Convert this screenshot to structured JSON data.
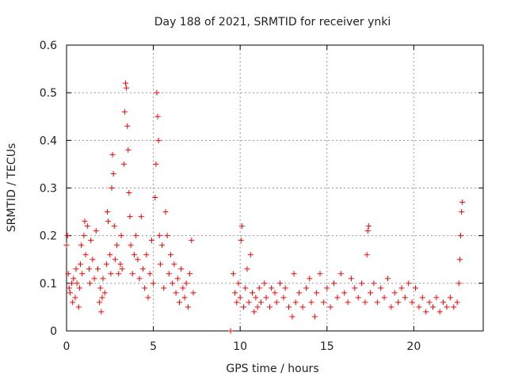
{
  "chart_data": {
    "type": "scatter",
    "title": "Day 188 of 2021, SRMTID for receiver ynki",
    "xlabel": "GPS time / hours",
    "ylabel": "SRMTID / TECUs",
    "xlim": [
      0,
      24
    ],
    "ylim": [
      0,
      0.6
    ],
    "xticks": [
      0,
      5,
      10,
      15,
      20
    ],
    "yticks": [
      0,
      0.1,
      0.2,
      0.3,
      0.4,
      0.5,
      0.6
    ],
    "xtick_labels": [
      "0",
      "5",
      "10",
      "15",
      "20"
    ],
    "ytick_labels": [
      "0",
      "0.1",
      "0.2",
      "0.3",
      "0.4",
      "0.5",
      "0.6"
    ],
    "grid": true,
    "marker": "plus",
    "color": "#ff0000",
    "series": [
      {
        "name": "SRMTID",
        "points": [
          [
            0.0,
            0.18
          ],
          [
            0.05,
            0.2
          ],
          [
            0.1,
            0.12
          ],
          [
            0.15,
            0.09
          ],
          [
            0.2,
            0.08
          ],
          [
            0.3,
            0.1
          ],
          [
            0.35,
            0.06
          ],
          [
            0.4,
            0.11
          ],
          [
            0.5,
            0.07
          ],
          [
            0.55,
            0.13
          ],
          [
            0.6,
            0.1
          ],
          [
            0.7,
            0.05
          ],
          [
            0.75,
            0.09
          ],
          [
            0.8,
            0.14
          ],
          [
            0.85,
            0.18
          ],
          [
            0.9,
            0.12
          ],
          [
            1.0,
            0.2
          ],
          [
            1.05,
            0.23
          ],
          [
            1.1,
            0.16
          ],
          [
            1.2,
            0.22
          ],
          [
            1.3,
            0.13
          ],
          [
            1.35,
            0.1
          ],
          [
            1.4,
            0.19
          ],
          [
            1.5,
            0.15
          ],
          [
            1.6,
            0.11
          ],
          [
            1.7,
            0.21
          ],
          [
            1.8,
            0.13
          ],
          [
            1.9,
            0.06
          ],
          [
            1.95,
            0.09
          ],
          [
            2.0,
            0.04
          ],
          [
            2.05,
            0.07
          ],
          [
            2.1,
            0.11
          ],
          [
            2.2,
            0.08
          ],
          [
            2.3,
            0.14
          ],
          [
            2.35,
            0.25
          ],
          [
            2.4,
            0.23
          ],
          [
            2.5,
            0.16
          ],
          [
            2.55,
            0.12
          ],
          [
            2.6,
            0.3
          ],
          [
            2.65,
            0.37
          ],
          [
            2.7,
            0.33
          ],
          [
            2.75,
            0.22
          ],
          [
            2.8,
            0.15
          ],
          [
            2.9,
            0.18
          ],
          [
            3.0,
            0.12
          ],
          [
            3.1,
            0.14
          ],
          [
            3.15,
            0.2
          ],
          [
            3.2,
            0.13
          ],
          [
            3.3,
            0.35
          ],
          [
            3.35,
            0.46
          ],
          [
            3.4,
            0.52
          ],
          [
            3.45,
            0.51
          ],
          [
            3.5,
            0.43
          ],
          [
            3.55,
            0.38
          ],
          [
            3.6,
            0.29
          ],
          [
            3.65,
            0.24
          ],
          [
            3.7,
            0.18
          ],
          [
            3.8,
            0.12
          ],
          [
            3.9,
            0.16
          ],
          [
            4.0,
            0.2
          ],
          [
            4.1,
            0.15
          ],
          [
            4.2,
            0.11
          ],
          [
            4.3,
            0.24
          ],
          [
            4.4,
            0.13
          ],
          [
            4.5,
            0.09
          ],
          [
            4.6,
            0.16
          ],
          [
            4.7,
            0.07
          ],
          [
            4.8,
            0.12
          ],
          [
            4.9,
            0.19
          ],
          [
            5.0,
            0.1
          ],
          [
            5.1,
            0.28
          ],
          [
            5.15,
            0.35
          ],
          [
            5.2,
            0.5
          ],
          [
            5.25,
            0.45
          ],
          [
            5.3,
            0.4
          ],
          [
            5.35,
            0.2
          ],
          [
            5.4,
            0.14
          ],
          [
            5.5,
            0.18
          ],
          [
            5.6,
            0.09
          ],
          [
            5.7,
            0.25
          ],
          [
            5.8,
            0.2
          ],
          [
            5.9,
            0.12
          ],
          [
            6.0,
            0.16
          ],
          [
            6.1,
            0.1
          ],
          [
            6.2,
            0.14
          ],
          [
            6.3,
            0.08
          ],
          [
            6.4,
            0.11
          ],
          [
            6.5,
            0.06
          ],
          [
            6.6,
            0.13
          ],
          [
            6.7,
            0.09
          ],
          [
            6.8,
            0.07
          ],
          [
            6.9,
            0.1
          ],
          [
            7.0,
            0.05
          ],
          [
            7.1,
            0.12
          ],
          [
            7.2,
            0.19
          ],
          [
            7.3,
            0.08
          ],
          [
            9.45,
            0.0
          ],
          [
            9.6,
            0.12
          ],
          [
            9.7,
            0.08
          ],
          [
            9.8,
            0.06
          ],
          [
            9.9,
            0.1
          ],
          [
            10.0,
            0.07
          ],
          [
            10.05,
            0.19
          ],
          [
            10.1,
            0.22
          ],
          [
            10.2,
            0.05
          ],
          [
            10.3,
            0.09
          ],
          [
            10.4,
            0.13
          ],
          [
            10.5,
            0.06
          ],
          [
            10.6,
            0.16
          ],
          [
            10.7,
            0.08
          ],
          [
            10.8,
            0.04
          ],
          [
            10.9,
            0.07
          ],
          [
            11.0,
            0.05
          ],
          [
            11.1,
            0.09
          ],
          [
            11.2,
            0.06
          ],
          [
            11.4,
            0.1
          ],
          [
            11.5,
            0.07
          ],
          [
            11.7,
            0.05
          ],
          [
            11.8,
            0.09
          ],
          [
            12.0,
            0.08
          ],
          [
            12.1,
            0.06
          ],
          [
            12.3,
            0.1
          ],
          [
            12.5,
            0.07
          ],
          [
            12.6,
            0.09
          ],
          [
            12.8,
            0.05
          ],
          [
            13.0,
            0.03
          ],
          [
            13.1,
            0.12
          ],
          [
            13.2,
            0.06
          ],
          [
            13.4,
            0.08
          ],
          [
            13.6,
            0.05
          ],
          [
            13.8,
            0.09
          ],
          [
            14.0,
            0.11
          ],
          [
            14.1,
            0.06
          ],
          [
            14.3,
            0.03
          ],
          [
            14.4,
            0.08
          ],
          [
            14.6,
            0.12
          ],
          [
            14.8,
            0.06
          ],
          [
            15.0,
            0.09
          ],
          [
            15.2,
            0.05
          ],
          [
            15.4,
            0.1
          ],
          [
            15.6,
            0.07
          ],
          [
            15.8,
            0.12
          ],
          [
            16.0,
            0.08
          ],
          [
            16.2,
            0.06
          ],
          [
            16.4,
            0.11
          ],
          [
            16.6,
            0.09
          ],
          [
            16.8,
            0.07
          ],
          [
            17.0,
            0.1
          ],
          [
            17.2,
            0.06
          ],
          [
            17.3,
            0.16
          ],
          [
            17.35,
            0.21
          ],
          [
            17.4,
            0.22
          ],
          [
            17.5,
            0.08
          ],
          [
            17.7,
            0.1
          ],
          [
            17.9,
            0.06
          ],
          [
            18.1,
            0.09
          ],
          [
            18.3,
            0.07
          ],
          [
            18.5,
            0.11
          ],
          [
            18.7,
            0.05
          ],
          [
            18.9,
            0.08
          ],
          [
            19.1,
            0.06
          ],
          [
            19.3,
            0.09
          ],
          [
            19.5,
            0.07
          ],
          [
            19.7,
            0.1
          ],
          [
            19.9,
            0.06
          ],
          [
            20.1,
            0.09
          ],
          [
            20.3,
            0.05
          ],
          [
            20.5,
            0.07
          ],
          [
            20.7,
            0.04
          ],
          [
            20.9,
            0.06
          ],
          [
            21.1,
            0.05
          ],
          [
            21.3,
            0.07
          ],
          [
            21.5,
            0.04
          ],
          [
            21.7,
            0.06
          ],
          [
            21.9,
            0.05
          ],
          [
            22.1,
            0.07
          ],
          [
            22.3,
            0.05
          ],
          [
            22.5,
            0.06
          ],
          [
            22.6,
            0.1
          ],
          [
            22.65,
            0.15
          ],
          [
            22.7,
            0.2
          ],
          [
            22.75,
            0.25
          ],
          [
            22.8,
            0.27
          ]
        ]
      }
    ]
  }
}
